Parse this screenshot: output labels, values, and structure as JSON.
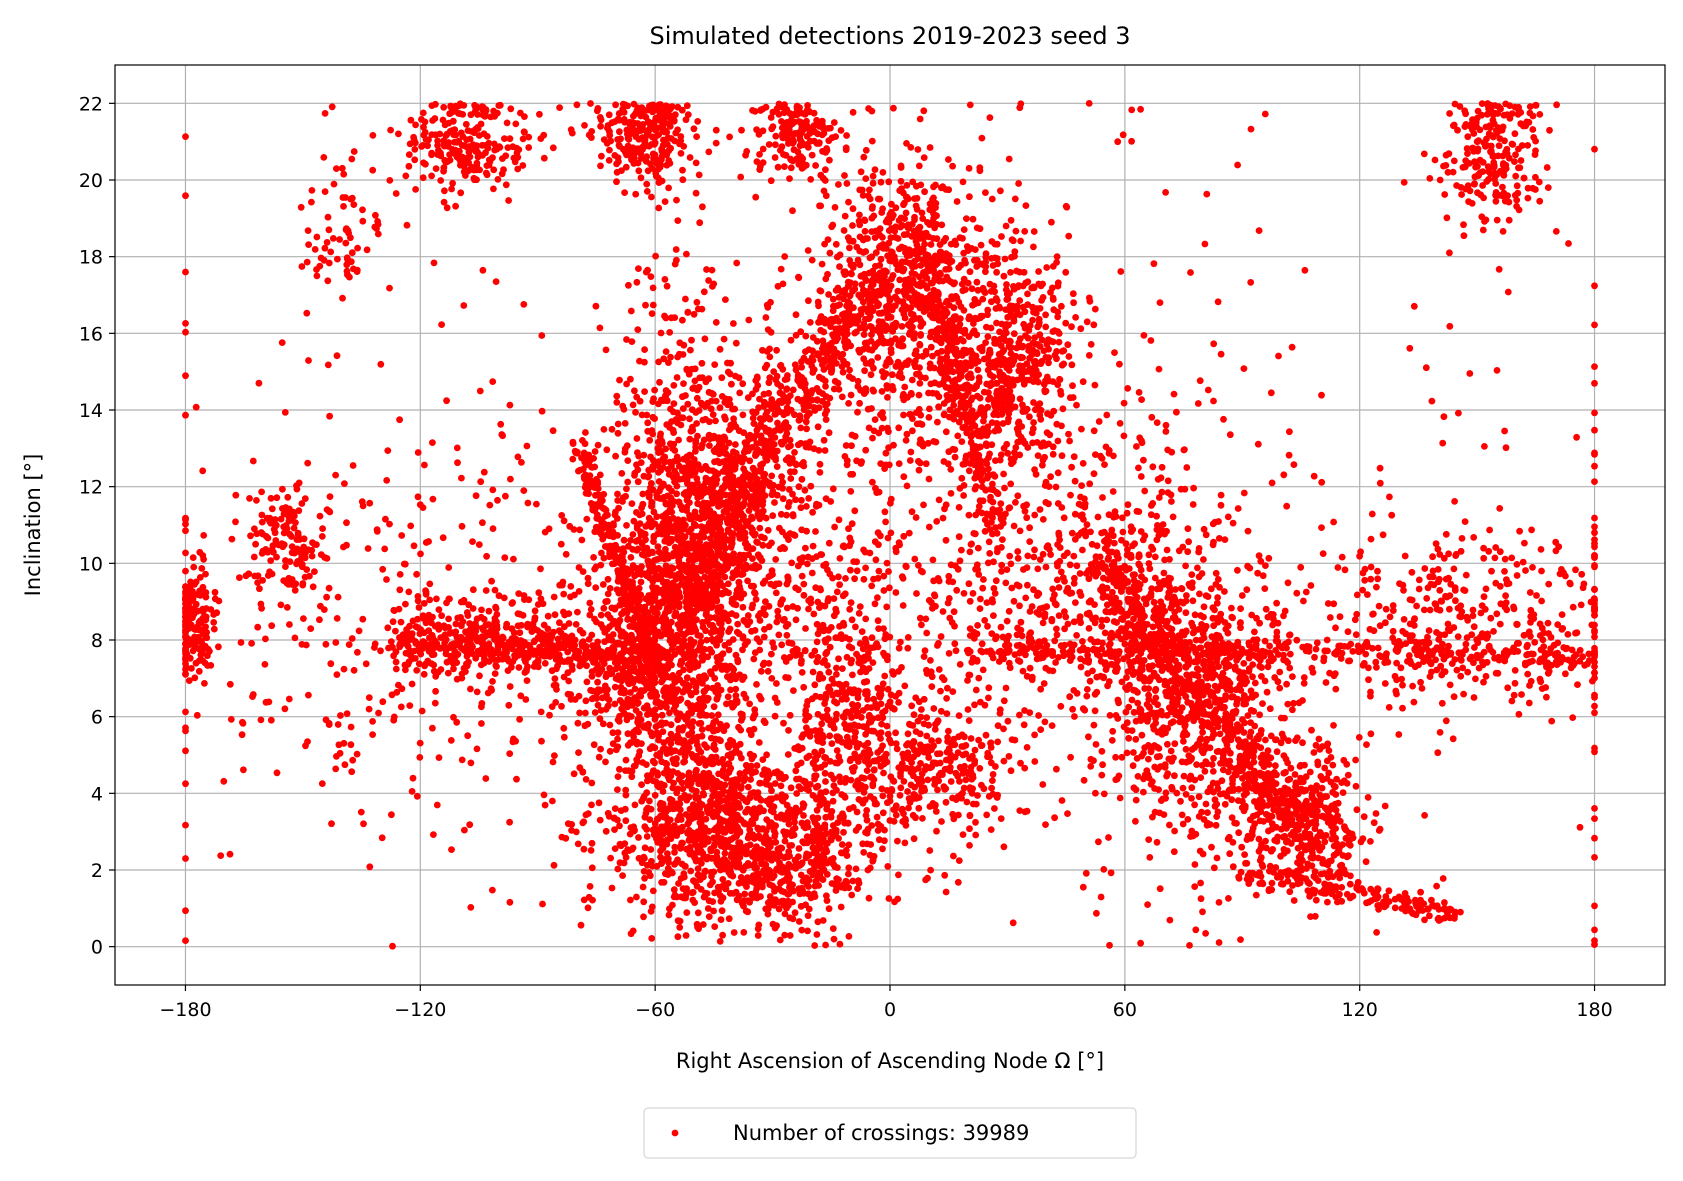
{
  "chart_data": {
    "type": "scatter",
    "title": "Simulated detections  2019-2023 seed 3",
    "xlabel": "Right Ascension of Ascending Node Ω [°]",
    "ylabel": "Inclination [°]",
    "xlim": [
      -198,
      198
    ],
    "ylim": [
      -1,
      23
    ],
    "x_ticks": [
      -180,
      -120,
      -60,
      0,
      60,
      120,
      180
    ],
    "x_tick_labels": [
      "−180",
      "−120",
      "−60",
      "0",
      "60",
      "120",
      "180"
    ],
    "y_ticks": [
      0,
      2,
      4,
      6,
      8,
      10,
      12,
      14,
      16,
      18,
      20,
      22
    ],
    "y_tick_labels": [
      "0",
      "2",
      "4",
      "6",
      "8",
      "10",
      "12",
      "14",
      "16",
      "18",
      "20",
      "22"
    ],
    "grid": true,
    "legend_position": "below",
    "series": [
      {
        "name": "Number of crossings: 39989",
        "color": "#ff0000",
        "count": 39989,
        "clusters": [
          {
            "x": -62,
            "y": 21.2,
            "sx": 6,
            "sy": 0.6,
            "n": 260
          },
          {
            "x": -108,
            "y": 21.0,
            "sx": 8,
            "sy": 0.7,
            "n": 240
          },
          {
            "x": -24,
            "y": 21.2,
            "sx": 5,
            "sy": 0.6,
            "n": 160
          },
          {
            "x": 155,
            "y": 20.8,
            "sx": 6,
            "sy": 0.9,
            "n": 220
          },
          {
            "x": 3,
            "y": 17.0,
            "sx": 10,
            "sy": 1.8,
            "n": 700
          },
          {
            "x": 30,
            "y": 15.5,
            "sx": 9,
            "sy": 1.6,
            "n": 550
          },
          {
            "x": -52,
            "y": 9.0,
            "sx": 9,
            "sy": 3.5,
            "n": 1200
          },
          {
            "x": -40,
            "y": 11.0,
            "sx": 12,
            "sy": 2.5,
            "n": 600
          },
          {
            "x": -45,
            "y": 3.0,
            "sx": 14,
            "sy": 1.0,
            "n": 700
          },
          {
            "x": -26,
            "y": 2.0,
            "sx": 10,
            "sy": 0.8,
            "n": 300
          },
          {
            "x": -65,
            "y": 7.5,
            "sx": 10,
            "sy": 1.5,
            "n": 400
          },
          {
            "x": -100,
            "y": 8.0,
            "sx": 14,
            "sy": 0.6,
            "n": 250
          },
          {
            "x": -10,
            "y": 6.0,
            "sx": 8,
            "sy": 2.0,
            "n": 400
          },
          {
            "x": 10,
            "y": 4.6,
            "sx": 12,
            "sy": 0.9,
            "n": 300
          },
          {
            "x": 68,
            "y": 7.5,
            "sx": 10,
            "sy": 2.0,
            "n": 500
          },
          {
            "x": 85,
            "y": 6.0,
            "sx": 10,
            "sy": 2.0,
            "n": 400
          },
          {
            "x": 105,
            "y": 3.5,
            "sx": 9,
            "sy": 1.0,
            "n": 300
          },
          {
            "x": -155,
            "y": 10.5,
            "sx": 5,
            "sy": 0.8,
            "n": 120
          },
          {
            "x": -178,
            "y": 8.5,
            "sx": 2.5,
            "sy": 0.8,
            "n": 150
          },
          {
            "x": 150,
            "y": 8.5,
            "sx": 22,
            "sy": 1.2,
            "n": 400
          },
          {
            "x": -130,
            "y": 8.0,
            "sx": 25,
            "sy": 2.5,
            "n": 250
          },
          {
            "x": 40,
            "y": 9.5,
            "sx": 20,
            "sy": 2.0,
            "n": 300
          },
          {
            "x": -140,
            "y": 18.5,
            "sx": 6,
            "sy": 1.0,
            "n": 70
          },
          {
            "x": 0,
            "y": 11.0,
            "sx": 50,
            "sy": 3.5,
            "n": 600
          },
          {
            "x": 0,
            "y": 10.0,
            "sx": 100,
            "sy": 6.0,
            "n": 450
          }
        ],
        "streaks": [
          {
            "from": [
              -80,
              13.0
            ],
            "to": [
              -58,
              7.0
            ],
            "n": 220,
            "spread": 0.3
          },
          {
            "from": [
              -55,
              9.0
            ],
            "to": [
              -8,
              17.0
            ],
            "n": 500,
            "spread": 0.7
          },
          {
            "from": [
              5,
              19.0
            ],
            "to": [
              28,
              11.0
            ],
            "n": 250,
            "spread": 0.6
          },
          {
            "from": [
              50,
              10.5
            ],
            "to": [
              115,
              2.0
            ],
            "n": 500,
            "spread": 0.6
          },
          {
            "from": [
              90,
              2.0
            ],
            "to": [
              145,
              0.8
            ],
            "n": 150,
            "spread": 0.15
          },
          {
            "from": [
              -125,
              8.0
            ],
            "to": [
              -60,
              7.6
            ],
            "n": 300,
            "spread": 0.25
          },
          {
            "from": [
              20,
              7.8
            ],
            "to": [
              180,
              7.6
            ],
            "n": 350,
            "spread": 0.2
          },
          {
            "from": [
              -18,
              2.0
            ],
            "to": [
              -18,
              6.0
            ],
            "n": 60,
            "spread": 0.3
          }
        ]
      }
    ]
  }
}
